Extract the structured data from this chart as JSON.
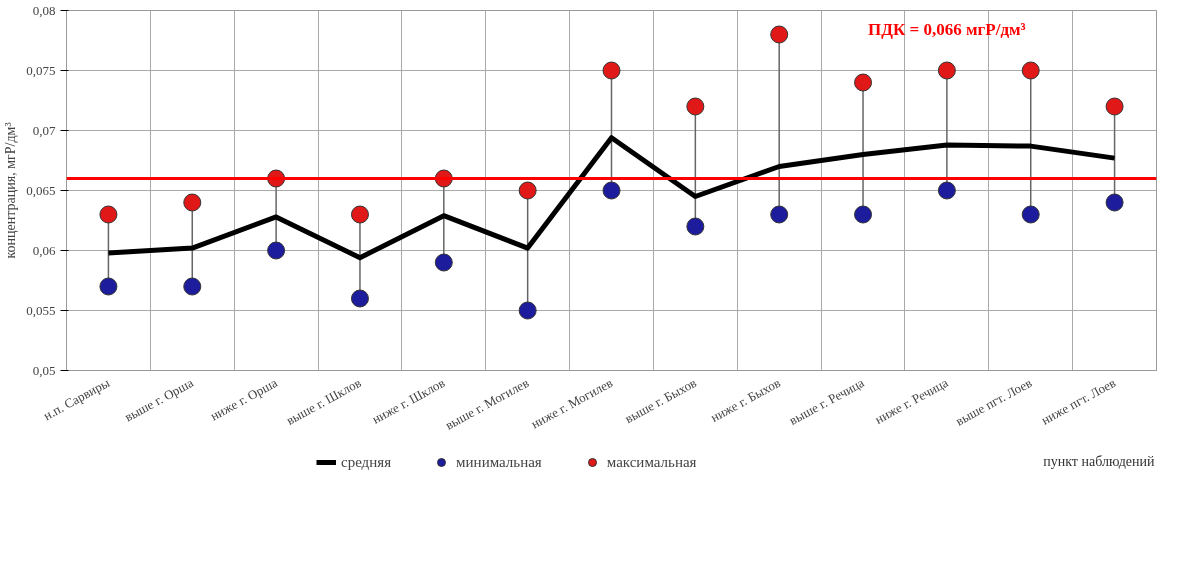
{
  "chart_data": {
    "type": "line",
    "ylabel": "концентрация, мгР/дм³",
    "xlabel": "пункт наблюдений",
    "categories": [
      "н.п. Сарвиры",
      "выше г. Орша",
      "ниже г. Орша",
      "выше г. Шклов",
      "ниже г. Шклов",
      "выше г. Могилев",
      "ниже г. Могилев",
      "выше г. Быхов",
      "ниже г. Быхов",
      "выше г. Речица",
      "ниже г. Речица",
      "выше пгт. Лоев",
      "ниже пгт. Лоев"
    ],
    "series": [
      {
        "name": "средняя",
        "marker": "none",
        "color": "#000000",
        "values": [
          0.0598,
          0.0602,
          0.0628,
          0.0594,
          0.0629,
          0.0602,
          0.0694,
          0.0645,
          0.067,
          0.068,
          0.0688,
          0.0687,
          0.0677
        ]
      },
      {
        "name": "минимальная",
        "type": "scatter",
        "marker": "circle",
        "color": "#1c1c9c",
        "values": [
          0.057,
          0.057,
          0.06,
          0.056,
          0.059,
          0.055,
          0.065,
          0.062,
          0.063,
          0.063,
          0.065,
          0.063,
          0.064
        ]
      },
      {
        "name": "максимальная",
        "type": "scatter",
        "marker": "circle",
        "color": "#e01818",
        "values": [
          0.063,
          0.064,
          0.066,
          0.063,
          0.066,
          0.065,
          0.075,
          0.072,
          0.078,
          0.074,
          0.075,
          0.075,
          0.072
        ]
      }
    ],
    "ylim": [
      0.05,
      0.08
    ],
    "yticks": [
      {
        "value": 0.05,
        "label": "0,05"
      },
      {
        "value": 0.055,
        "label": "0,055"
      },
      {
        "value": 0.06,
        "label": "0,06"
      },
      {
        "value": 0.065,
        "label": "0,065"
      },
      {
        "value": 0.07,
        "label": "0,07"
      },
      {
        "value": 0.075,
        "label": "0,075"
      },
      {
        "value": 0.08,
        "label": "0,08"
      }
    ],
    "ref_lines": [
      {
        "axis": "y",
        "value": 0.066,
        "label": "ПДК = 0,066 мгР/дм³",
        "color": "#ff0000"
      }
    ],
    "grid": true,
    "legend": "bottom",
    "line_style": "solid"
  }
}
